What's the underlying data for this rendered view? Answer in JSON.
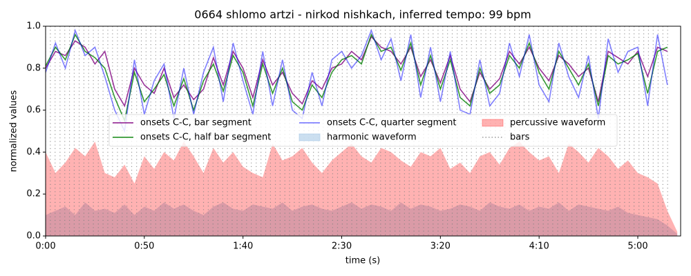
{
  "chart_data": {
    "type": "line",
    "title": "0664 shlomo artzi - nirkod nishkach, inferred tempo: 99 bpm",
    "xlabel": "time (s)",
    "ylabel": "normalized values",
    "xlim": [
      0,
      321.7
    ],
    "ylim": [
      0,
      1
    ],
    "xticks": [
      {
        "value": 0,
        "label": "0:00"
      },
      {
        "value": 50,
        "label": "0:50"
      },
      {
        "value": 100,
        "label": "1:40"
      },
      {
        "value": 150,
        "label": "2:30"
      },
      {
        "value": 200,
        "label": "3:20"
      },
      {
        "value": 250,
        "label": "4:10"
      },
      {
        "value": 300,
        "label": "5:00"
      }
    ],
    "yticks": [
      {
        "value": 0,
        "label": "0.0"
      },
      {
        "value": 0.2,
        "label": "0.2"
      },
      {
        "value": 0.4,
        "label": "0.4"
      },
      {
        "value": 0.6,
        "label": "0.6"
      },
      {
        "value": 0.8,
        "label": "0.8"
      },
      {
        "value": 1,
        "label": "1.0"
      }
    ],
    "x": [
      0,
      5,
      10,
      15,
      20,
      25,
      30,
      35,
      40,
      45,
      50,
      55,
      60,
      65,
      70,
      75,
      80,
      85,
      90,
      95,
      100,
      105,
      110,
      115,
      120,
      125,
      130,
      135,
      140,
      145,
      150,
      155,
      160,
      165,
      170,
      175,
      180,
      185,
      190,
      195,
      200,
      205,
      210,
      215,
      220,
      225,
      230,
      235,
      240,
      245,
      250,
      255,
      260,
      265,
      270,
      275,
      280,
      285,
      290,
      295,
      300,
      305,
      310,
      315,
      320
    ],
    "series": [
      {
        "name": "onsets C-C, bar segment",
        "type": "line",
        "color": "#800080",
        "opacity": 0.8,
        "values": [
          0.8,
          0.88,
          0.86,
          0.93,
          0.9,
          0.82,
          0.88,
          0.7,
          0.62,
          0.8,
          0.72,
          0.68,
          0.8,
          0.66,
          0.72,
          0.65,
          0.7,
          0.85,
          0.72,
          0.88,
          0.8,
          0.66,
          0.84,
          0.72,
          0.78,
          0.68,
          0.63,
          0.74,
          0.7,
          0.8,
          0.82,
          0.88,
          0.84,
          0.95,
          0.9,
          0.88,
          0.82,
          0.9,
          0.76,
          0.84,
          0.73,
          0.86,
          0.7,
          0.64,
          0.78,
          0.7,
          0.75,
          0.88,
          0.82,
          0.9,
          0.8,
          0.74,
          0.86,
          0.82,
          0.76,
          0.8,
          0.64,
          0.88,
          0.85,
          0.82,
          0.88,
          0.76,
          0.9,
          0.88,
          null
        ]
      },
      {
        "name": "onsets C-C, half bar segment",
        "type": "line",
        "color": "#008000",
        "opacity": 0.8,
        "values": [
          0.81,
          0.9,
          0.84,
          0.96,
          0.88,
          0.85,
          0.8,
          0.66,
          0.55,
          0.78,
          0.64,
          0.7,
          0.77,
          0.62,
          0.75,
          0.6,
          0.74,
          0.82,
          0.69,
          0.86,
          0.78,
          0.62,
          0.82,
          0.68,
          0.8,
          0.64,
          0.6,
          0.72,
          0.66,
          0.78,
          0.84,
          0.86,
          0.82,
          0.96,
          0.88,
          0.9,
          0.79,
          0.92,
          0.72,
          0.86,
          0.7,
          0.84,
          0.66,
          0.62,
          0.8,
          0.68,
          0.72,
          0.86,
          0.8,
          0.92,
          0.78,
          0.7,
          0.88,
          0.8,
          0.72,
          0.82,
          0.62,
          0.86,
          0.82,
          0.84,
          0.87,
          0.68,
          0.88,
          0.9,
          null
        ]
      },
      {
        "name": "onsets C-C, quarter segment",
        "type": "line",
        "color": "#0000ff",
        "opacity": 0.5,
        "values": [
          0.78,
          0.92,
          0.8,
          0.98,
          0.86,
          0.9,
          0.76,
          0.6,
          0.5,
          0.84,
          0.58,
          0.74,
          0.82,
          0.56,
          0.8,
          0.58,
          0.78,
          0.9,
          0.64,
          0.92,
          0.74,
          0.58,
          0.88,
          0.62,
          0.84,
          0.6,
          0.56,
          0.78,
          0.62,
          0.84,
          0.88,
          0.8,
          0.86,
          0.98,
          0.84,
          0.94,
          0.74,
          0.96,
          0.66,
          0.9,
          0.64,
          0.88,
          0.6,
          0.58,
          0.84,
          0.62,
          0.68,
          0.92,
          0.76,
          0.96,
          0.72,
          0.64,
          0.92,
          0.76,
          0.66,
          0.86,
          0.56,
          0.94,
          0.78,
          0.88,
          0.9,
          0.62,
          0.96,
          0.72,
          null
        ]
      },
      {
        "name": "harmonic waveform",
        "type": "area",
        "color": "#a9c9e6",
        "opacity": 0.6,
        "values": [
          0.1,
          0.12,
          0.14,
          0.1,
          0.16,
          0.12,
          0.13,
          0.11,
          0.15,
          0.1,
          0.14,
          0.12,
          0.16,
          0.13,
          0.15,
          0.12,
          0.1,
          0.14,
          0.16,
          0.13,
          0.12,
          0.15,
          0.14,
          0.13,
          0.16,
          0.12,
          0.14,
          0.15,
          0.13,
          0.12,
          0.14,
          0.16,
          0.13,
          0.15,
          0.14,
          0.12,
          0.16,
          0.13,
          0.15,
          0.14,
          0.12,
          0.13,
          0.15,
          0.14,
          0.12,
          0.16,
          0.14,
          0.13,
          0.15,
          0.12,
          0.14,
          0.13,
          0.16,
          0.12,
          0.15,
          0.14,
          0.13,
          0.12,
          0.14,
          0.11,
          0.1,
          0.09,
          0.08,
          0.05,
          0.01
        ]
      },
      {
        "name": "percussive waveform",
        "type": "area",
        "color": "#ff0000",
        "opacity": 0.3,
        "values": [
          0.4,
          0.3,
          0.35,
          0.42,
          0.38,
          0.45,
          0.3,
          0.28,
          0.34,
          0.25,
          0.38,
          0.32,
          0.4,
          0.36,
          0.45,
          0.38,
          0.3,
          0.42,
          0.35,
          0.4,
          0.33,
          0.3,
          0.28,
          0.44,
          0.36,
          0.38,
          0.42,
          0.35,
          0.3,
          0.36,
          0.4,
          0.44,
          0.38,
          0.35,
          0.42,
          0.4,
          0.36,
          0.33,
          0.4,
          0.38,
          0.42,
          0.32,
          0.35,
          0.3,
          0.38,
          0.4,
          0.34,
          0.42,
          0.45,
          0.4,
          0.36,
          0.38,
          0.3,
          0.44,
          0.4,
          0.35,
          0.42,
          0.38,
          0.32,
          0.36,
          0.3,
          0.28,
          0.25,
          0.12,
          0.02
        ]
      },
      {
        "name": "bars",
        "type": "vline",
        "color": "#808080",
        "opacity": 0.8,
        "x": [
          0,
          2.4,
          4.8,
          7.3,
          9.7,
          12.1,
          14.5,
          17,
          19.4,
          21.8,
          24.2,
          26.7,
          29.1,
          31.5,
          33.9,
          36.4,
          38.8,
          41.2,
          43.6,
          46.1,
          48.5,
          50.9,
          53.3,
          55.8,
          58.2,
          60.6,
          63,
          65.4,
          67.9,
          70.3,
          72.7,
          75.1,
          77.6,
          80,
          82.4,
          84.8,
          87.3,
          89.7,
          92.1,
          94.5,
          97,
          99.4,
          101.8,
          104.2,
          106.7,
          109.1,
          111.5,
          113.9,
          116.4,
          118.8,
          121.2,
          123.6,
          126,
          128.5,
          130.9,
          133.3,
          135.7,
          138.2,
          140.6,
          143,
          145.4,
          147.9,
          150.3,
          152.7,
          155.1,
          157.6,
          160,
          162.4,
          164.8,
          167.3,
          169.7,
          172.1,
          174.5,
          177,
          179.4,
          181.8,
          184.2,
          186.6,
          189.1,
          191.5,
          193.9,
          196.3,
          198.8,
          201.2,
          203.6,
          206,
          208.5,
          210.9,
          213.3,
          215.7,
          218.2,
          220.6,
          223,
          225.4,
          227.9,
          230.3,
          232.7,
          235.1,
          237.6,
          240,
          242.4,
          244.8,
          247.2,
          249.7,
          252.1,
          254.5,
          256.9,
          259.4,
          261.8,
          264.2,
          266.6,
          269.1,
          271.5,
          273.9,
          276.3,
          278.8,
          281.2,
          283.6,
          286,
          288.5,
          290.9,
          293.3,
          295.7,
          298.1,
          300.6,
          303,
          305.4,
          307.8,
          310.3,
          312.7,
          315.1
        ]
      }
    ]
  }
}
